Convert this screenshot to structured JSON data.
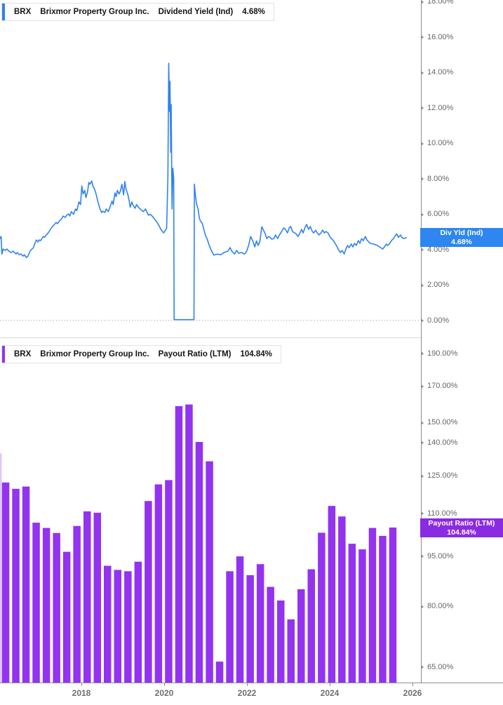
{
  "panels": [
    {
      "legend": {
        "ticker": "BRX",
        "company": "Brixmor Property Group Inc.",
        "metric": "Dividend Yield (Ind)",
        "value": "4.68%"
      },
      "badge": {
        "line1": "Div Yld (Ind)",
        "line2": "4.68%"
      }
    },
    {
      "legend": {
        "ticker": "BRX",
        "company": "Brixmor Property Group Inc.",
        "metric": "Payout Ratio (LTM)",
        "value": "104.84%"
      },
      "badge": {
        "line1": "Payout Ratio (LTM)",
        "line2": "104.84%"
      }
    }
  ],
  "x_axis": {
    "range": [
      2016.0,
      2026.2
    ],
    "ticks": [
      [
        2018,
        "2018"
      ],
      [
        2020,
        "2020"
      ],
      [
        2022,
        "2022"
      ],
      [
        2024,
        "2024"
      ],
      [
        2026,
        "2026"
      ]
    ]
  },
  "chart_data": [
    {
      "type": "line",
      "panel": "top",
      "ticker": "BRX",
      "company": "Brixmor Property Group Inc.",
      "series_name": "Dividend Yield (Ind)",
      "current_value_pct": 4.68,
      "color": "#2e82f0",
      "badge_color": "#2e86f0",
      "yscale": "linear",
      "ylim": [
        0,
        18.2
      ],
      "yticks": [
        [
          18,
          "18.00%"
        ],
        [
          16,
          "16.00%"
        ],
        [
          14,
          "14.00%"
        ],
        [
          12,
          "12.00%"
        ],
        [
          10,
          "10.00%"
        ],
        [
          8,
          "8.00%"
        ],
        [
          6,
          "6.00%"
        ],
        [
          4,
          "4.00%"
        ],
        [
          2,
          "2.00%"
        ],
        [
          0,
          "0.00%"
        ]
      ],
      "zero_reference_line": "dotted",
      "points": [
        [
          2016.03,
          4.63
        ],
        [
          2016.06,
          4.75
        ],
        [
          2016.08,
          3.75
        ],
        [
          2016.11,
          4.04
        ],
        [
          2016.16,
          3.96
        ],
        [
          2016.2,
          4.04
        ],
        [
          2016.25,
          3.92
        ],
        [
          2016.3,
          3.84
        ],
        [
          2016.35,
          3.92
        ],
        [
          2016.42,
          3.76
        ],
        [
          2016.45,
          3.84
        ],
        [
          2016.5,
          3.72
        ],
        [
          2016.54,
          3.76
        ],
        [
          2016.59,
          3.64
        ],
        [
          2016.62,
          3.72
        ],
        [
          2016.67,
          3.56
        ],
        [
          2016.71,
          3.64
        ],
        [
          2016.76,
          3.92
        ],
        [
          2016.84,
          4.12
        ],
        [
          2016.88,
          4.36
        ],
        [
          2016.91,
          4.55
        ],
        [
          2016.95,
          4.44
        ],
        [
          2016.98,
          4.55
        ],
        [
          2017.01,
          4.51
        ],
        [
          2017.05,
          4.63
        ],
        [
          2017.08,
          4.75
        ],
        [
          2017.11,
          4.7
        ],
        [
          2017.15,
          4.83
        ],
        [
          2017.18,
          4.9
        ],
        [
          2017.22,
          5.03
        ],
        [
          2017.25,
          5.15
        ],
        [
          2017.3,
          5.3
        ],
        [
          2017.35,
          5.43
        ],
        [
          2017.39,
          5.54
        ],
        [
          2017.42,
          5.47
        ],
        [
          2017.47,
          5.62
        ],
        [
          2017.52,
          5.74
        ],
        [
          2017.56,
          5.9
        ],
        [
          2017.61,
          5.82
        ],
        [
          2017.64,
          5.94
        ],
        [
          2017.69,
          6.02
        ],
        [
          2017.72,
          5.9
        ],
        [
          2017.76,
          6.15
        ],
        [
          2017.81,
          6.0
        ],
        [
          2017.86,
          6.3
        ],
        [
          2017.89,
          6.2
        ],
        [
          2017.94,
          6.7
        ],
        [
          2017.98,
          6.55
        ],
        [
          2018.01,
          7.6
        ],
        [
          2018.04,
          7.15
        ],
        [
          2018.08,
          7.35
        ],
        [
          2018.11,
          6.95
        ],
        [
          2018.15,
          7.3
        ],
        [
          2018.18,
          7.8
        ],
        [
          2018.21,
          7.7
        ],
        [
          2018.25,
          7.88
        ],
        [
          2018.28,
          7.6
        ],
        [
          2018.32,
          7.4
        ],
        [
          2018.35,
          7.2
        ],
        [
          2018.4,
          6.7
        ],
        [
          2018.45,
          6.3
        ],
        [
          2018.49,
          6.1
        ],
        [
          2018.52,
          6.18
        ],
        [
          2018.57,
          6.1
        ],
        [
          2018.6,
          6.3
        ],
        [
          2018.65,
          6.15
        ],
        [
          2018.69,
          6.4
        ],
        [
          2018.74,
          6.75
        ],
        [
          2018.77,
          6.55
        ],
        [
          2018.81,
          7.2
        ],
        [
          2018.84,
          7.0
        ],
        [
          2018.87,
          7.35
        ],
        [
          2018.91,
          7.15
        ],
        [
          2018.94,
          7.3
        ],
        [
          2018.98,
          7.7
        ],
        [
          2019.02,
          7.1
        ],
        [
          2019.05,
          7.85
        ],
        [
          2019.08,
          7.4
        ],
        [
          2019.12,
          7.15
        ],
        [
          2019.15,
          6.8
        ],
        [
          2019.18,
          6.4
        ],
        [
          2019.22,
          6.7
        ],
        [
          2019.25,
          6.5
        ],
        [
          2019.3,
          6.34
        ],
        [
          2019.33,
          6.55
        ],
        [
          2019.38,
          6.4
        ],
        [
          2019.42,
          6.3
        ],
        [
          2019.47,
          6.2
        ],
        [
          2019.5,
          6.15
        ],
        [
          2019.55,
          6.3
        ],
        [
          2019.59,
          6.1
        ],
        [
          2019.62,
          5.95
        ],
        [
          2019.66,
          6.0
        ],
        [
          2019.71,
          5.9
        ],
        [
          2019.76,
          5.75
        ],
        [
          2019.81,
          5.6
        ],
        [
          2019.84,
          5.5
        ],
        [
          2019.89,
          5.3
        ],
        [
          2019.92,
          5.15
        ],
        [
          2019.96,
          5.03
        ],
        [
          2019.99,
          4.95
        ],
        [
          2020.03,
          5.1
        ],
        [
          2020.06,
          5.2
        ],
        [
          2020.09,
          8.0
        ],
        [
          2020.11,
          14.53
        ],
        [
          2020.13,
          11.8
        ],
        [
          2020.14,
          13.5
        ],
        [
          2020.16,
          9.5
        ],
        [
          2020.17,
          12.2
        ],
        [
          2020.19,
          6.3
        ],
        [
          2020.21,
          8.6
        ],
        [
          2020.23,
          8.0
        ],
        [
          2020.24,
          0.05
        ],
        [
          2020.72,
          0.05
        ],
        [
          2020.73,
          7.7
        ],
        [
          2020.75,
          7.2
        ],
        [
          2020.78,
          6.6
        ],
        [
          2020.82,
          6.3
        ],
        [
          2020.85,
          5.8
        ],
        [
          2020.88,
          5.6
        ],
        [
          2020.92,
          5.5
        ],
        [
          2020.95,
          5.2
        ],
        [
          2021.0,
          4.8
        ],
        [
          2021.04,
          4.6
        ],
        [
          2021.08,
          4.3
        ],
        [
          2021.14,
          3.95
        ],
        [
          2021.2,
          3.7
        ],
        [
          2021.28,
          3.75
        ],
        [
          2021.37,
          3.72
        ],
        [
          2021.45,
          3.85
        ],
        [
          2021.54,
          3.92
        ],
        [
          2021.59,
          4.12
        ],
        [
          2021.64,
          3.9
        ],
        [
          2021.7,
          3.76
        ],
        [
          2021.75,
          3.96
        ],
        [
          2021.8,
          3.8
        ],
        [
          2021.87,
          3.84
        ],
        [
          2021.94,
          3.76
        ],
        [
          2021.99,
          3.9
        ],
        [
          2022.04,
          4.24
        ],
        [
          2022.09,
          4.75
        ],
        [
          2022.14,
          4.5
        ],
        [
          2022.19,
          4.16
        ],
        [
          2022.23,
          4.5
        ],
        [
          2022.27,
          4.24
        ],
        [
          2022.31,
          4.44
        ],
        [
          2022.36,
          5.3
        ],
        [
          2022.4,
          5.1
        ],
        [
          2022.44,
          4.9
        ],
        [
          2022.48,
          4.63
        ],
        [
          2022.52,
          4.75
        ],
        [
          2022.56,
          4.7
        ],
        [
          2022.6,
          4.6
        ],
        [
          2022.65,
          4.63
        ],
        [
          2022.69,
          4.83
        ],
        [
          2022.74,
          4.63
        ],
        [
          2022.79,
          4.85
        ],
        [
          2022.84,
          5.03
        ],
        [
          2022.89,
          5.23
        ],
        [
          2022.93,
          5.15
        ],
        [
          2022.98,
          4.95
        ],
        [
          2023.02,
          5.23
        ],
        [
          2023.06,
          5.31
        ],
        [
          2023.1,
          5.03
        ],
        [
          2023.15,
          4.95
        ],
        [
          2023.19,
          4.9
        ],
        [
          2023.23,
          4.75
        ],
        [
          2023.27,
          4.9
        ],
        [
          2023.32,
          5.15
        ],
        [
          2023.36,
          4.95
        ],
        [
          2023.4,
          5.23
        ],
        [
          2023.44,
          5.43
        ],
        [
          2023.49,
          5.15
        ],
        [
          2023.53,
          5.31
        ],
        [
          2023.58,
          5.03
        ],
        [
          2023.61,
          4.95
        ],
        [
          2023.66,
          5.1
        ],
        [
          2023.7,
          4.95
        ],
        [
          2023.74,
          4.83
        ],
        [
          2023.79,
          4.95
        ],
        [
          2023.83,
          5.11
        ],
        [
          2023.87,
          4.95
        ],
        [
          2023.91,
          5.03
        ],
        [
          2023.96,
          4.95
        ],
        [
          2024.0,
          4.75
        ],
        [
          2024.04,
          4.63
        ],
        [
          2024.09,
          4.51
        ],
        [
          2024.13,
          4.36
        ],
        [
          2024.18,
          4.16
        ],
        [
          2024.22,
          3.96
        ],
        [
          2024.26,
          3.84
        ],
        [
          2024.3,
          3.96
        ],
        [
          2024.35,
          3.76
        ],
        [
          2024.39,
          4.04
        ],
        [
          2024.43,
          4.24
        ],
        [
          2024.47,
          4.12
        ],
        [
          2024.52,
          4.32
        ],
        [
          2024.56,
          4.16
        ],
        [
          2024.6,
          4.36
        ],
        [
          2024.64,
          4.24
        ],
        [
          2024.69,
          4.51
        ],
        [
          2024.73,
          4.36
        ],
        [
          2024.77,
          4.63
        ],
        [
          2024.81,
          4.51
        ],
        [
          2024.86,
          4.75
        ],
        [
          2024.9,
          4.55
        ],
        [
          2024.94,
          4.44
        ],
        [
          2024.98,
          4.36
        ],
        [
          2025.06,
          4.32
        ],
        [
          2025.15,
          4.24
        ],
        [
          2025.23,
          4.12
        ],
        [
          2025.28,
          4.04
        ],
        [
          2025.32,
          4.16
        ],
        [
          2025.37,
          4.32
        ],
        [
          2025.4,
          4.24
        ],
        [
          2025.45,
          4.36
        ],
        [
          2025.49,
          4.51
        ],
        [
          2025.54,
          4.63
        ],
        [
          2025.57,
          4.75
        ],
        [
          2025.62,
          4.9
        ],
        [
          2025.66,
          4.7
        ],
        [
          2025.71,
          4.83
        ],
        [
          2025.74,
          4.7
        ],
        [
          2025.79,
          4.63
        ],
        [
          2025.85,
          4.68
        ]
      ]
    },
    {
      "type": "bar",
      "panel": "bottom",
      "ticker": "BRX",
      "company": "Brixmor Property Group Inc.",
      "series_name": "Payout Ratio (LTM)",
      "current_value_pct": 104.84,
      "color": "#9333f0",
      "badge_color": "#8a2be2",
      "yscale": "log",
      "yticks": [
        [
          190,
          "190.00%"
        ],
        [
          170,
          "170.00%"
        ],
        [
          150,
          "150.00%"
        ],
        [
          140,
          "140.00%"
        ],
        [
          125,
          "125.00%"
        ],
        [
          110,
          "110.00%"
        ],
        [
          95,
          "95.00%"
        ],
        [
          80,
          "80.00%"
        ],
        [
          65,
          "65.00%"
        ]
      ],
      "categories": [
        "2016 Q1",
        "2016 Q2",
        "2016 Q3",
        "2016 Q4",
        "2017 Q1",
        "2017 Q2",
        "2017 Q3",
        "2017 Q4",
        "2018 Q1",
        "2018 Q2",
        "2018 Q3",
        "2018 Q4",
        "2019 Q1",
        "2019 Q2",
        "2019 Q3",
        "2019 Q4",
        "2020 Q1",
        "2020 Q2",
        "2020 Q3",
        "2020 Q4",
        "2021 Q1",
        "2021 Q2",
        "2021 Q3",
        "2021 Q4",
        "2022 Q1",
        "2022 Q2",
        "2022 Q3",
        "2022 Q4",
        "2023 Q1",
        "2023 Q2",
        "2023 Q3",
        "2023 Q4",
        "2024 Q1",
        "2024 Q2",
        "2024 Q3",
        "2024 Q4",
        "2025 Q1",
        "2025 Q2",
        "2025 Q3"
      ],
      "values": [
        122.3,
        119.7,
        120.6,
        106.6,
        104.7,
        102.9,
        96.5,
        105.4,
        110.8,
        110.3,
        92.0,
        90.7,
        90.3,
        93.3,
        114.8,
        121.5,
        123.3,
        158.8,
        159.7,
        140.5,
        131.5,
        66.3,
        90.3,
        95.0,
        89.1,
        92.5,
        85.6,
        81.7,
        76.6,
        84.9,
        90.9,
        103.0,
        112.9,
        108.9,
        99.2,
        97.3,
        104.7,
        101.9,
        104.84
      ],
      "edge_partial_bar": {
        "category": "2015 Q4",
        "value": 135
      }
    }
  ]
}
